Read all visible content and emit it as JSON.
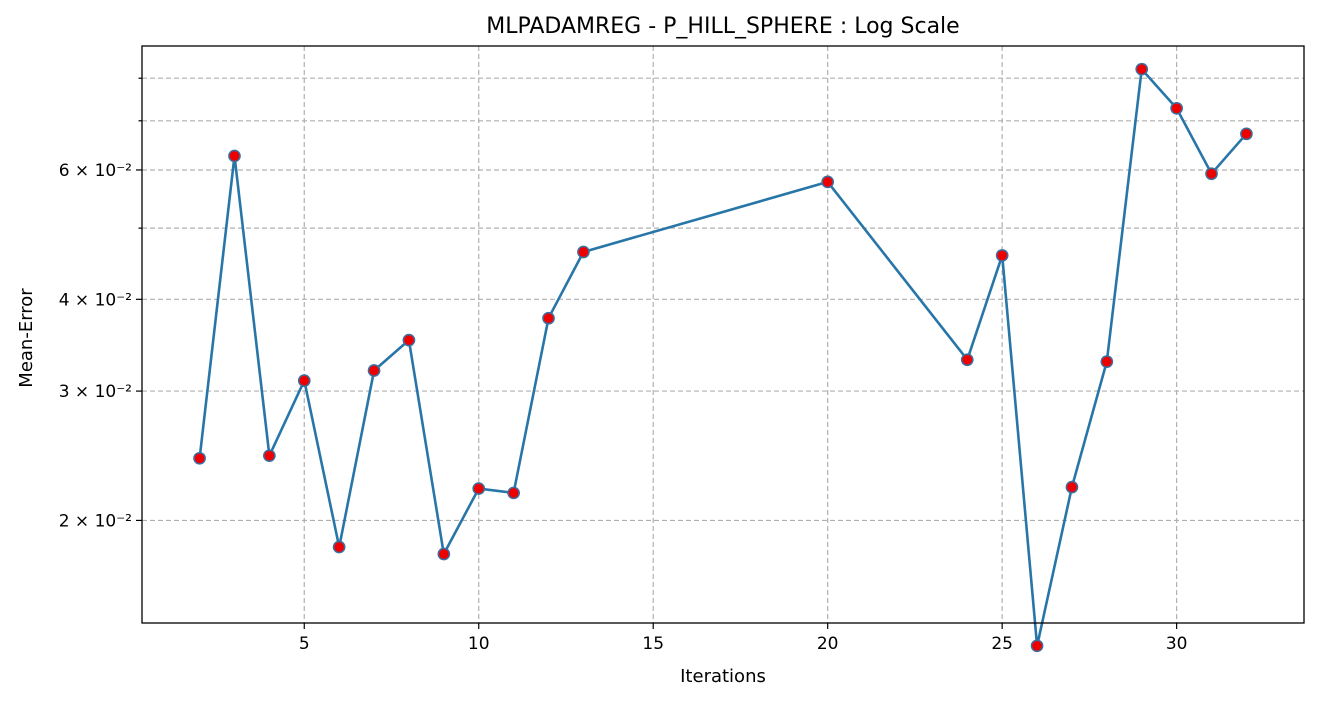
{
  "chart_data": {
    "type": "line",
    "title": "MLPADAMREG - P_HILL_SPHERE : Log Scale",
    "xlabel": "Iterations",
    "ylabel": "Mean-Error",
    "yscale": "log",
    "grid": true,
    "xlim": [
      0.35,
      33.65
    ],
    "ylim": [
      0.0145,
      0.0885
    ],
    "x_ticks": [
      5,
      10,
      15,
      20,
      25,
      30
    ],
    "y_major_ticks": [
      {
        "value": 0.02,
        "label": "2 × 10⁻²"
      },
      {
        "value": 0.03,
        "label": "3 × 10⁻²"
      },
      {
        "value": 0.04,
        "label": "4 × 10⁻²"
      },
      {
        "value": 0.06,
        "label": "6 × 10⁻²"
      }
    ],
    "y_minor_ticks": [
      0.05,
      0.07,
      0.08
    ],
    "colors": {
      "line": "#2876a8",
      "marker_face": "#ee0000",
      "marker_edge": "#3a6fa0"
    },
    "series": [
      {
        "x": [
          2,
          3,
          4,
          5,
          6,
          7,
          8,
          9,
          10,
          11,
          12,
          13,
          20,
          24,
          25,
          26,
          27,
          28,
          29,
          30,
          31,
          32
        ],
        "y": [
          0.0243,
          0.0627,
          0.0245,
          0.031,
          0.0184,
          0.032,
          0.0352,
          0.018,
          0.0221,
          0.0218,
          0.0377,
          0.0464,
          0.0578,
          0.0331,
          0.0459,
          0.0135,
          0.0222,
          0.0329,
          0.0823,
          0.0728,
          0.0593,
          0.0672
        ]
      }
    ]
  }
}
